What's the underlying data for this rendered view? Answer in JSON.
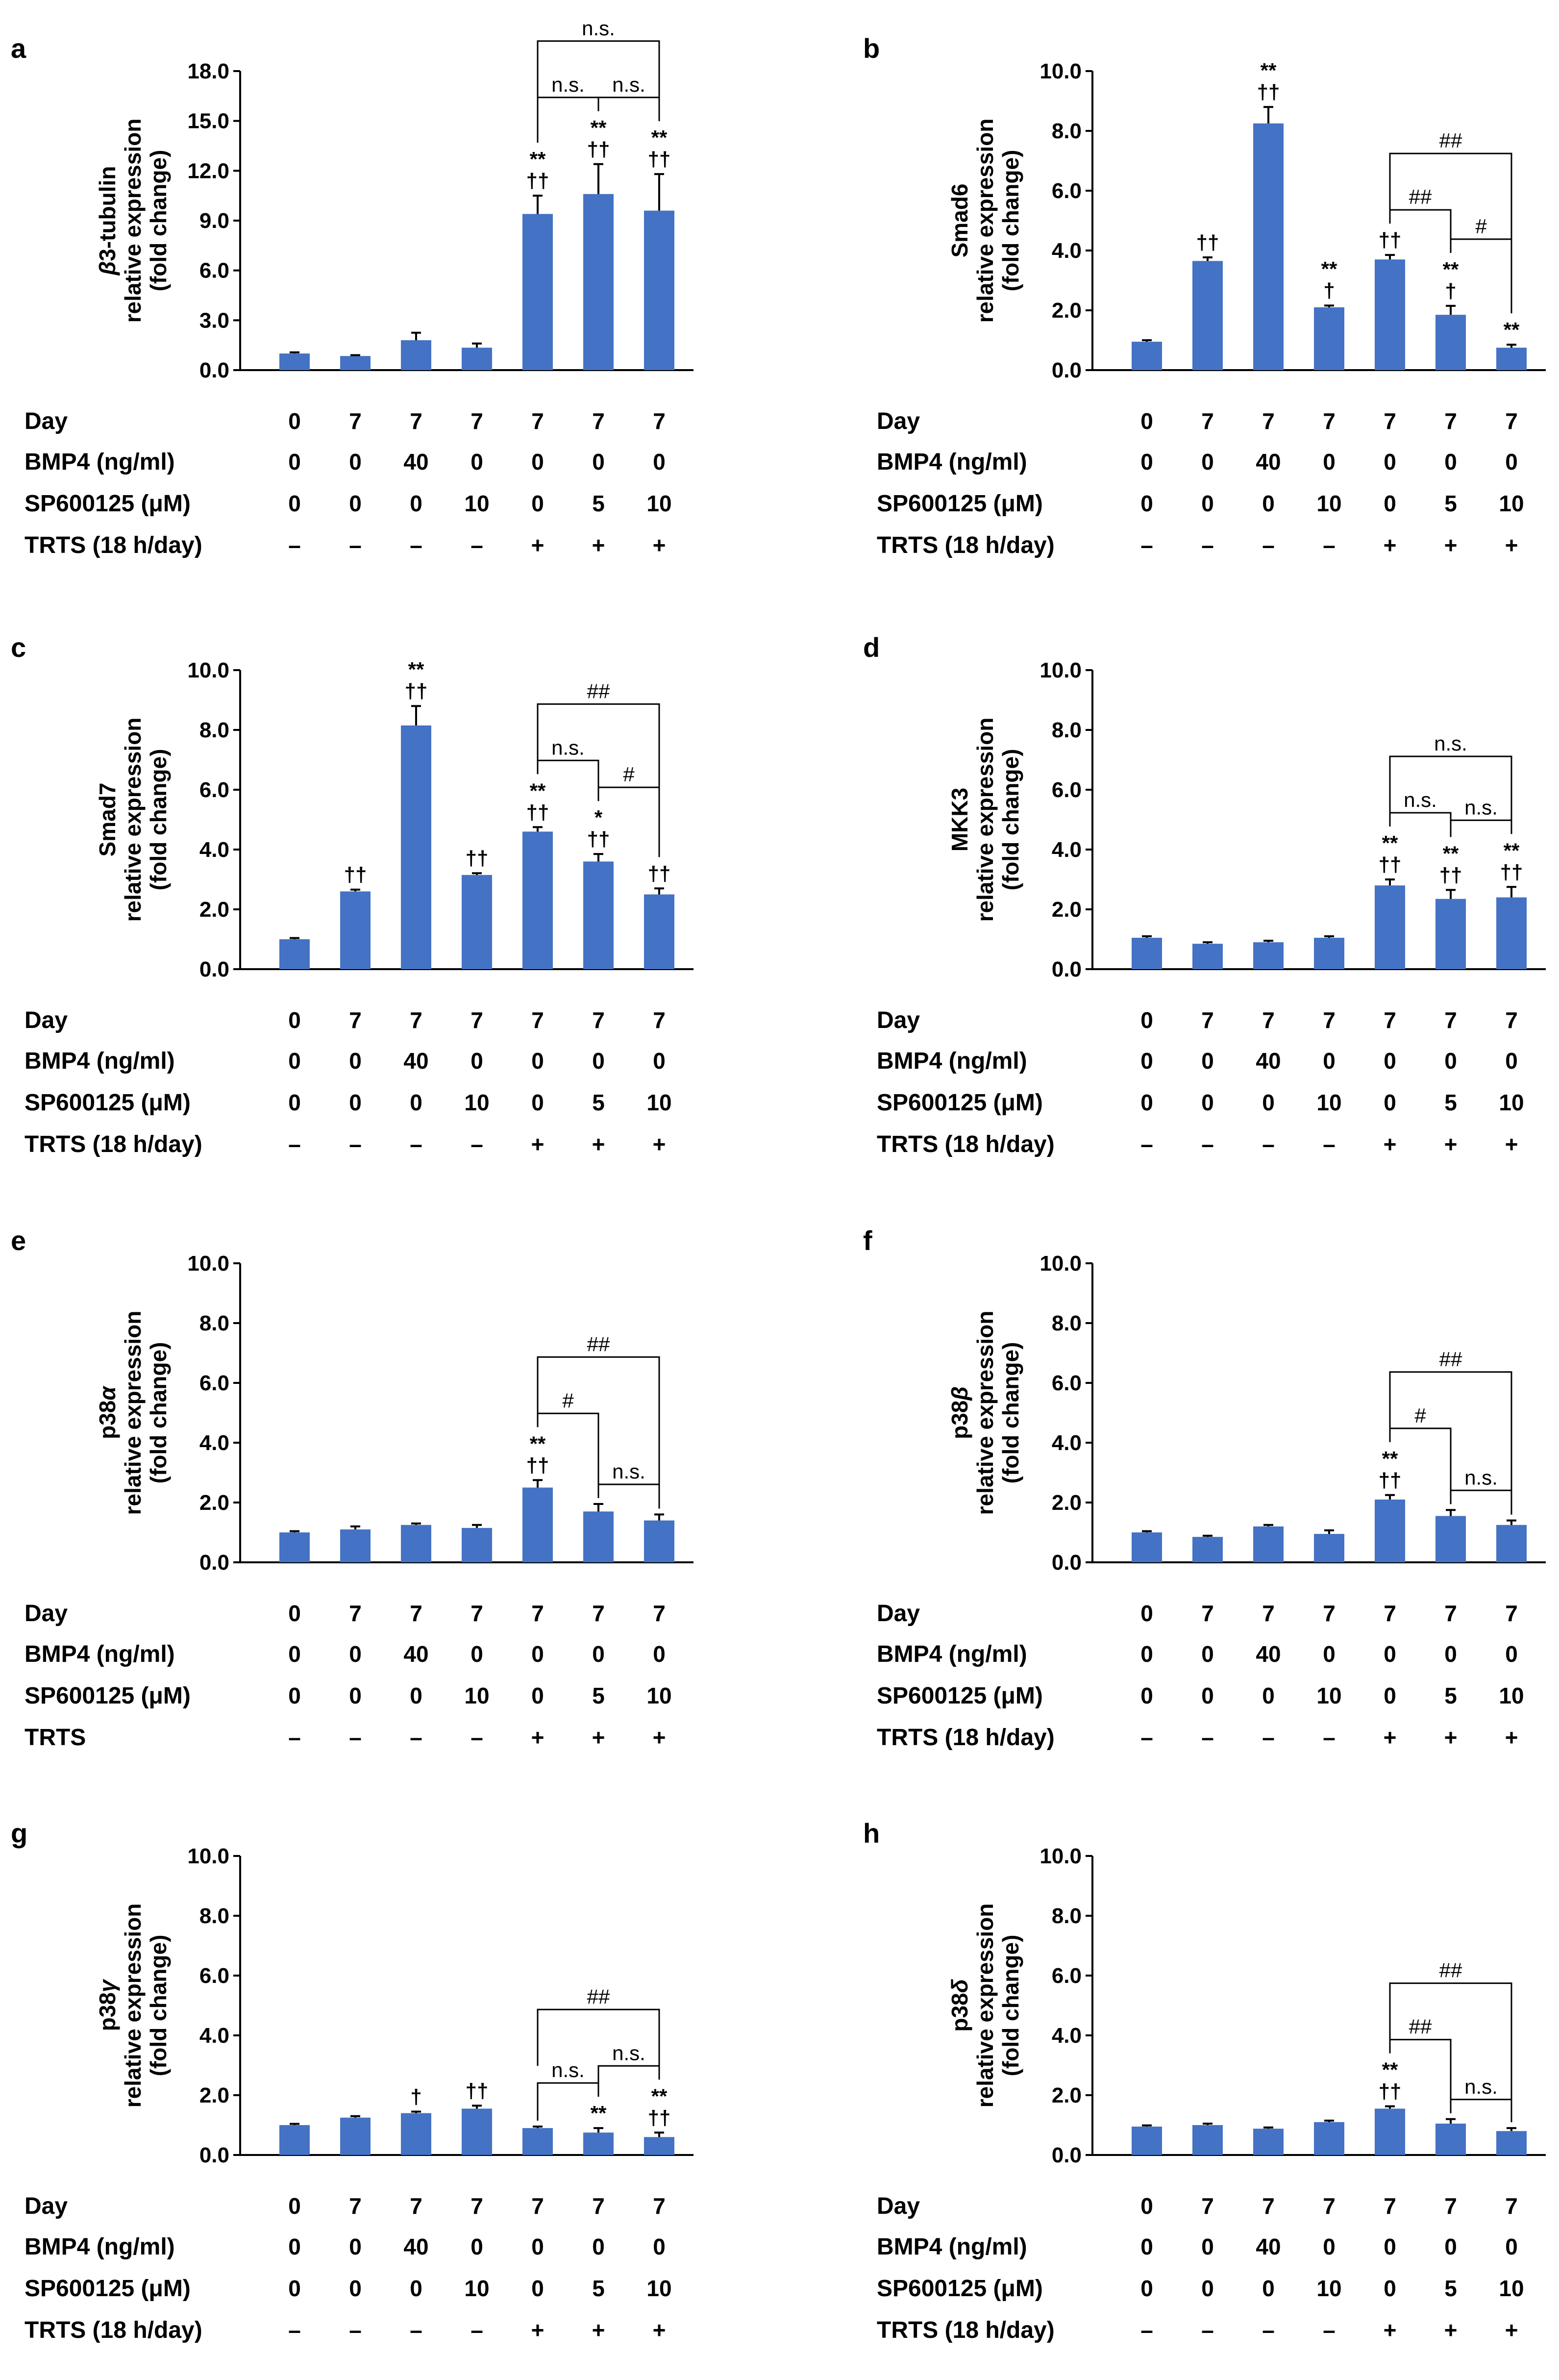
{
  "figure": {
    "row_labels": [
      "Day",
      "BMP4 (ng/ml)",
      "SP600125 (μM)",
      "TRTS (18 h/day)"
    ],
    "conditions": {
      "day": [
        "0",
        "7",
        "7",
        "7",
        "7",
        "7",
        "7"
      ],
      "bmp4": [
        "0",
        "0",
        "40",
        "0",
        "0",
        "0",
        "0"
      ],
      "sp600125": [
        "0",
        "0",
        "0",
        "10",
        "0",
        "5",
        "10"
      ],
      "trts": [
        "–",
        "–",
        "–",
        "–",
        "+",
        "+",
        "+"
      ]
    },
    "colors": {
      "bar": "#4472C4",
      "text": "#000000",
      "axis": "#000000"
    }
  },
  "chart_data": [
    {
      "panel": "a",
      "type": "bar",
      "ylabel_gene": "β3-tubulin",
      "ylabel_gene_italic_prefix": "β",
      "ylabel_line2": "relative expression",
      "ylabel_line3": "(fold change)",
      "ylim": [
        0,
        18
      ],
      "yticks": [
        "0.0",
        "3.0",
        "6.0",
        "9.0",
        "12.0",
        "15.0",
        "18.0"
      ],
      "values": [
        1.0,
        0.85,
        1.8,
        1.35,
        9.4,
        10.6,
        9.6
      ],
      "errors": [
        0.07,
        0.05,
        0.45,
        0.25,
        1.1,
        1.8,
        2.2
      ],
      "annotations": [
        "",
        "",
        "",
        "",
        "**\n††",
        "**\n††",
        "**\n††"
      ],
      "trts_label": "TRTS (18 h/day)",
      "brackets": [
        {
          "from": 4,
          "to": 5,
          "label": "n.s."
        },
        {
          "from": 5,
          "to": 6,
          "label": "n.s."
        },
        {
          "from": 4,
          "to": 6,
          "label": "n.s."
        }
      ]
    },
    {
      "panel": "b",
      "type": "bar",
      "ylabel_gene": "Smad6",
      "ylabel_gene_italic_prefix": "",
      "ylabel_line2": "relative expression",
      "ylabel_line3": "(fold change)",
      "ylim": [
        0,
        10
      ],
      "yticks": [
        "0.0",
        "2.0",
        "4.0",
        "6.0",
        "8.0",
        "10.0"
      ],
      "values": [
        0.95,
        3.65,
        8.25,
        2.1,
        3.7,
        1.85,
        0.75
      ],
      "errors": [
        0.05,
        0.12,
        0.55,
        0.06,
        0.15,
        0.3,
        0.1
      ],
      "annotations": [
        "",
        "††",
        "**\n††",
        "**\n†",
        "††",
        "**\n†",
        "**"
      ],
      "trts_label": "TRTS (18 h/day)",
      "brackets": [
        {
          "from": 4,
          "to": 5,
          "label": "##"
        },
        {
          "from": 5,
          "to": 6,
          "label": "#"
        },
        {
          "from": 4,
          "to": 6,
          "label": "##"
        }
      ]
    },
    {
      "panel": "c",
      "type": "bar",
      "ylabel_gene": "Smad7",
      "ylabel_gene_italic_prefix": "",
      "ylabel_line2": "relative expression",
      "ylabel_line3": "(fold change)",
      "ylim": [
        0,
        10
      ],
      "yticks": [
        "0.0",
        "2.0",
        "4.0",
        "6.0",
        "8.0",
        "10.0"
      ],
      "values": [
        1.0,
        2.6,
        8.15,
        3.15,
        4.6,
        3.6,
        2.5
      ],
      "errors": [
        0.04,
        0.06,
        0.65,
        0.06,
        0.15,
        0.25,
        0.2
      ],
      "annotations": [
        "",
        "††",
        "**\n††",
        "††",
        "**\n††",
        "*\n††",
        "††"
      ],
      "trts_label": "TRTS (18 h/day)",
      "brackets": [
        {
          "from": 4,
          "to": 5,
          "label": "n.s."
        },
        {
          "from": 5,
          "to": 6,
          "label": "#"
        },
        {
          "from": 4,
          "to": 6,
          "label": "##"
        }
      ]
    },
    {
      "panel": "d",
      "type": "bar",
      "ylabel_gene": "MKK3",
      "ylabel_gene_italic_prefix": "",
      "ylabel_line2": "relative expression",
      "ylabel_line3": "(fold change)",
      "ylim": [
        0,
        10
      ],
      "yticks": [
        "0.0",
        "2.0",
        "4.0",
        "6.0",
        "8.0",
        "10.0"
      ],
      "values": [
        1.05,
        0.85,
        0.9,
        1.05,
        2.8,
        2.35,
        2.4
      ],
      "errors": [
        0.05,
        0.05,
        0.05,
        0.05,
        0.2,
        0.3,
        0.35
      ],
      "annotations": [
        "",
        "",
        "",
        "",
        "**\n††",
        "**\n††",
        "**\n††"
      ],
      "trts_label": "TRTS (18 h/day)",
      "brackets": [
        {
          "from": 4,
          "to": 5,
          "label": "n.s."
        },
        {
          "from": 5,
          "to": 6,
          "label": "n.s."
        },
        {
          "from": 4,
          "to": 6,
          "label": "n.s."
        }
      ]
    },
    {
      "panel": "e",
      "type": "bar",
      "ylabel_gene": "p38α",
      "ylabel_gene_italic_prefix": "p38",
      "ylabel_line2": "relative expression",
      "ylabel_line3": "(fold change)",
      "ylim": [
        0,
        10
      ],
      "yticks": [
        "0.0",
        "2.0",
        "4.0",
        "6.0",
        "8.0",
        "10.0"
      ],
      "values": [
        1.0,
        1.1,
        1.25,
        1.15,
        2.5,
        1.7,
        1.4
      ],
      "errors": [
        0.04,
        0.1,
        0.05,
        0.1,
        0.25,
        0.25,
        0.2
      ],
      "annotations": [
        "",
        "",
        "",
        "",
        "**\n††",
        "",
        ""
      ],
      "trts_label": "TRTS",
      "brackets": [
        {
          "from": 4,
          "to": 5,
          "label": "#"
        },
        {
          "from": 5,
          "to": 6,
          "label": "n.s."
        },
        {
          "from": 4,
          "to": 6,
          "label": "##"
        }
      ]
    },
    {
      "panel": "f",
      "type": "bar",
      "ylabel_gene": "p38β",
      "ylabel_gene_italic_prefix": "p38",
      "ylabel_line2": "relative expression",
      "ylabel_line3": "(fold change)",
      "ylim": [
        0,
        10
      ],
      "yticks": [
        "0.0",
        "2.0",
        "4.0",
        "6.0",
        "8.0",
        "10.0"
      ],
      "values": [
        1.0,
        0.85,
        1.2,
        0.95,
        2.1,
        1.55,
        1.25
      ],
      "errors": [
        0.04,
        0.04,
        0.05,
        0.12,
        0.15,
        0.2,
        0.15
      ],
      "annotations": [
        "",
        "",
        "",
        "",
        "**\n††",
        "",
        ""
      ],
      "trts_label": "TRTS (18 h/day)",
      "brackets": [
        {
          "from": 4,
          "to": 5,
          "label": "#"
        },
        {
          "from": 5,
          "to": 6,
          "label": "n.s."
        },
        {
          "from": 4,
          "to": 6,
          "label": "##"
        }
      ]
    },
    {
      "panel": "g",
      "type": "bar",
      "ylabel_gene": "p38γ",
      "ylabel_gene_italic_prefix": "p38",
      "ylabel_line2": "relative expression",
      "ylabel_line3": "(fold change)",
      "ylim": [
        0,
        10
      ],
      "yticks": [
        "0.0",
        "2.0",
        "4.0",
        "6.0",
        "8.0",
        "10.0"
      ],
      "values": [
        1.0,
        1.25,
        1.4,
        1.55,
        0.9,
        0.75,
        0.6
      ],
      "errors": [
        0.04,
        0.05,
        0.05,
        0.1,
        0.05,
        0.15,
        0.15
      ],
      "annotations": [
        "",
        "",
        "†",
        "††",
        "",
        "**",
        "**\n††"
      ],
      "trts_label": "TRTS (18 h/day)",
      "brackets": [
        {
          "from": 4,
          "to": 5,
          "label": "n.s."
        },
        {
          "from": 5,
          "to": 6,
          "label": "n.s."
        },
        {
          "from": 4,
          "to": 6,
          "label": "##"
        }
      ]
    },
    {
      "panel": "h",
      "type": "bar",
      "ylabel_gene": "p38δ",
      "ylabel_gene_italic_prefix": "p38",
      "ylabel_line2": "relative expression",
      "ylabel_line3": "(fold change)",
      "ylim": [
        0,
        10
      ],
      "yticks": [
        "0.0",
        "2.0",
        "4.0",
        "6.0",
        "8.0",
        "10.0"
      ],
      "values": [
        0.95,
        1.0,
        0.88,
        1.1,
        1.55,
        1.05,
        0.8
      ],
      "errors": [
        0.04,
        0.05,
        0.04,
        0.05,
        0.08,
        0.15,
        0.1
      ],
      "annotations": [
        "",
        "",
        "",
        "",
        "**\n††",
        "",
        ""
      ],
      "trts_label": "TRTS (18 h/day)",
      "brackets": [
        {
          "from": 4,
          "to": 5,
          "label": "##"
        },
        {
          "from": 5,
          "to": 6,
          "label": "n.s."
        },
        {
          "from": 4,
          "to": 6,
          "label": "##"
        }
      ]
    }
  ]
}
